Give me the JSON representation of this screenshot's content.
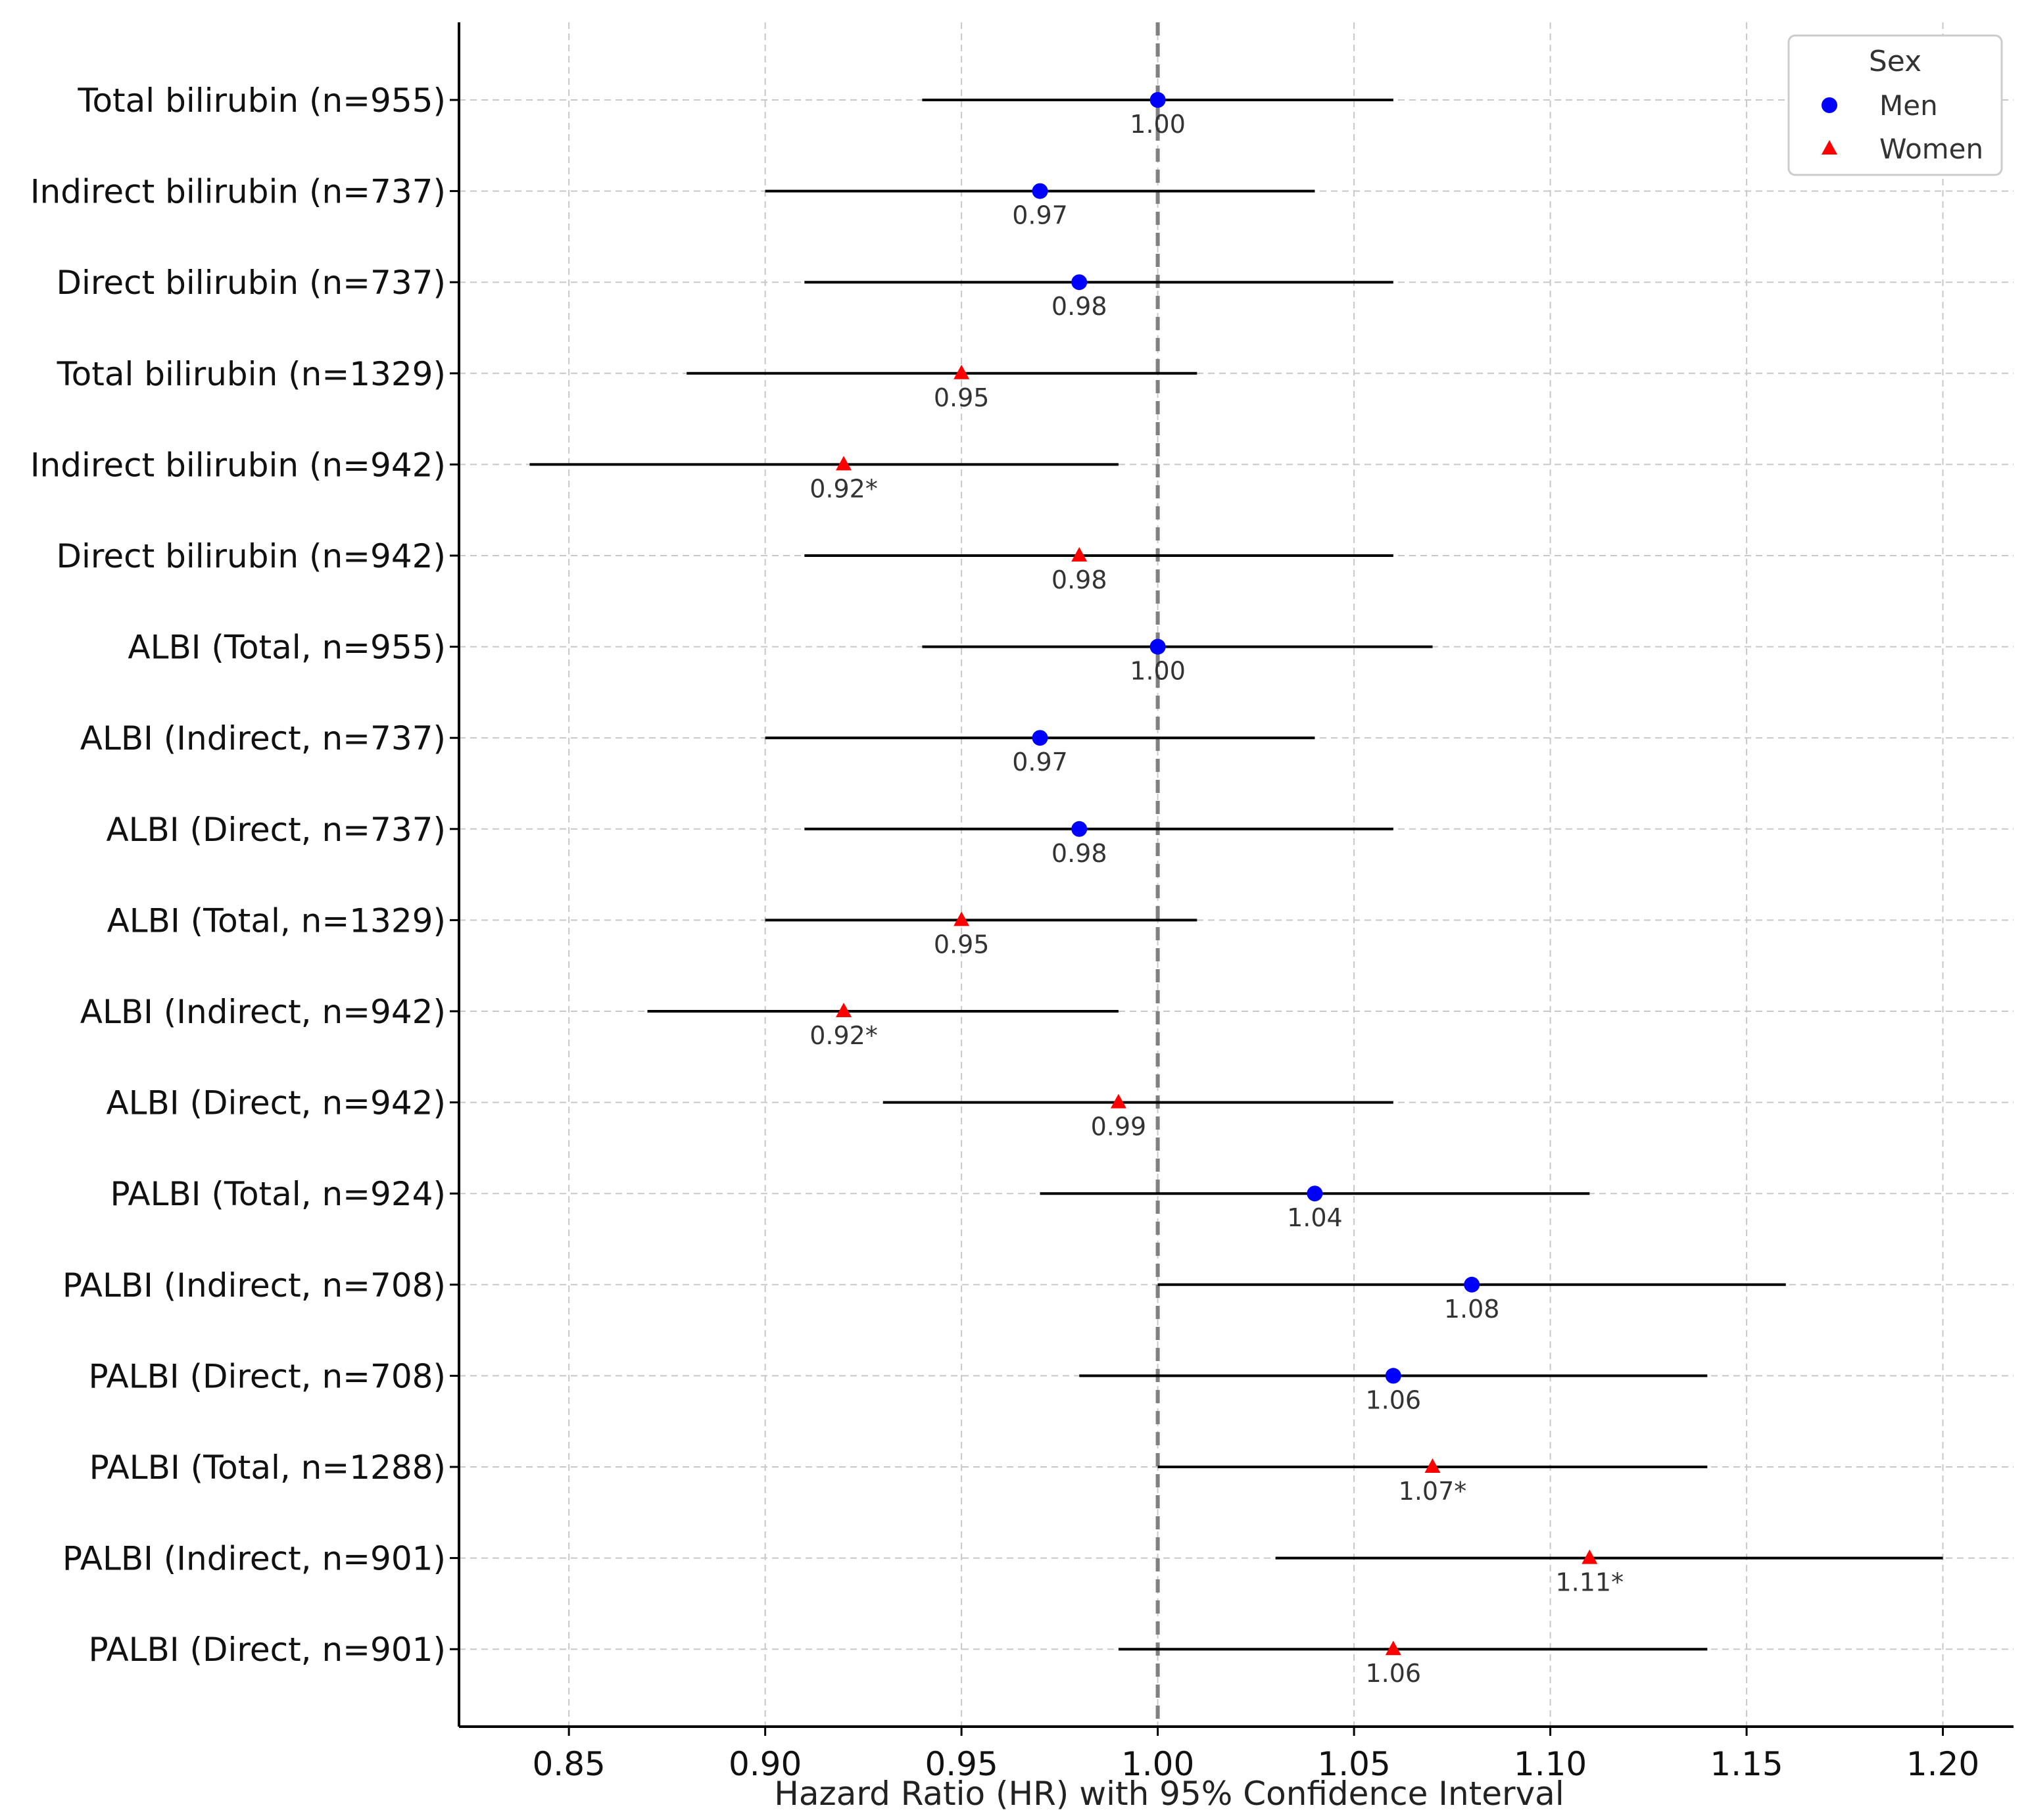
{
  "chart_data": {
    "type": "forest",
    "title": "",
    "xlabel": "Hazard Ratio (HR) with 95% Confidence Interval",
    "ylabel": "",
    "xlim": [
      0.822,
      1.218
    ],
    "xticks": [
      0.85,
      0.9,
      0.95,
      1.0,
      1.05,
      1.1,
      1.15,
      1.2
    ],
    "xtick_labels": [
      "0.85",
      "0.90",
      "0.95",
      "1.00",
      "1.05",
      "1.10",
      "1.15",
      "1.20"
    ],
    "reference_line": 1.0,
    "grid": true,
    "legend": {
      "title": "Sex",
      "position": "top-right",
      "entries": [
        {
          "name": "Men",
          "marker": "circle",
          "color": "#0000ff"
        },
        {
          "name": "Women",
          "marker": "triangle",
          "color": "#ff0000"
        }
      ]
    },
    "rows": [
      {
        "label": "Total bilirubin (n=955)",
        "sex": "Men",
        "hr": 1.0,
        "lower": 0.94,
        "upper": 1.06,
        "display": "1.00"
      },
      {
        "label": "Indirect bilirubin (n=737)",
        "sex": "Men",
        "hr": 0.97,
        "lower": 0.9,
        "upper": 1.04,
        "display": "0.97"
      },
      {
        "label": "Direct bilirubin (n=737)",
        "sex": "Men",
        "hr": 0.98,
        "lower": 0.91,
        "upper": 1.06,
        "display": "0.98"
      },
      {
        "label": "Total bilirubin (n=1329)",
        "sex": "Women",
        "hr": 0.95,
        "lower": 0.88,
        "upper": 1.01,
        "display": "0.95"
      },
      {
        "label": "Indirect bilirubin (n=942)",
        "sex": "Women",
        "hr": 0.92,
        "lower": 0.84,
        "upper": 0.99,
        "display": "0.92*"
      },
      {
        "label": "Direct bilirubin (n=942)",
        "sex": "Women",
        "hr": 0.98,
        "lower": 0.91,
        "upper": 1.06,
        "display": "0.98"
      },
      {
        "label": "ALBI (Total, n=955)",
        "sex": "Men",
        "hr": 1.0,
        "lower": 0.94,
        "upper": 1.07,
        "display": "1.00"
      },
      {
        "label": "ALBI (Indirect, n=737)",
        "sex": "Men",
        "hr": 0.97,
        "lower": 0.9,
        "upper": 1.04,
        "display": "0.97"
      },
      {
        "label": "ALBI (Direct, n=737)",
        "sex": "Men",
        "hr": 0.98,
        "lower": 0.91,
        "upper": 1.06,
        "display": "0.98"
      },
      {
        "label": "ALBI (Total, n=1329)",
        "sex": "Women",
        "hr": 0.95,
        "lower": 0.9,
        "upper": 1.01,
        "display": "0.95"
      },
      {
        "label": "ALBI (Indirect, n=942)",
        "sex": "Women",
        "hr": 0.92,
        "lower": 0.87,
        "upper": 0.99,
        "display": "0.92*"
      },
      {
        "label": "ALBI (Direct, n=942)",
        "sex": "Women",
        "hr": 0.99,
        "lower": 0.93,
        "upper": 1.06,
        "display": "0.99"
      },
      {
        "label": "PALBI (Total, n=924)",
        "sex": "Men",
        "hr": 1.04,
        "lower": 0.97,
        "upper": 1.11,
        "display": "1.04"
      },
      {
        "label": "PALBI (Indirect, n=708)",
        "sex": "Men",
        "hr": 1.08,
        "lower": 1.0,
        "upper": 1.16,
        "display": "1.08"
      },
      {
        "label": "PALBI (Direct, n=708)",
        "sex": "Men",
        "hr": 1.06,
        "lower": 0.98,
        "upper": 1.14,
        "display": "1.06"
      },
      {
        "label": "PALBI (Total, n=1288)",
        "sex": "Women",
        "hr": 1.07,
        "lower": 1.0,
        "upper": 1.14,
        "display": "1.07*"
      },
      {
        "label": "PALBI (Indirect, n=901)",
        "sex": "Women",
        "hr": 1.11,
        "lower": 1.03,
        "upper": 1.2,
        "display": "1.11*"
      },
      {
        "label": "PALBI (Direct, n=901)",
        "sex": "Women",
        "hr": 1.06,
        "lower": 0.99,
        "upper": 1.14,
        "display": "1.06"
      }
    ]
  }
}
